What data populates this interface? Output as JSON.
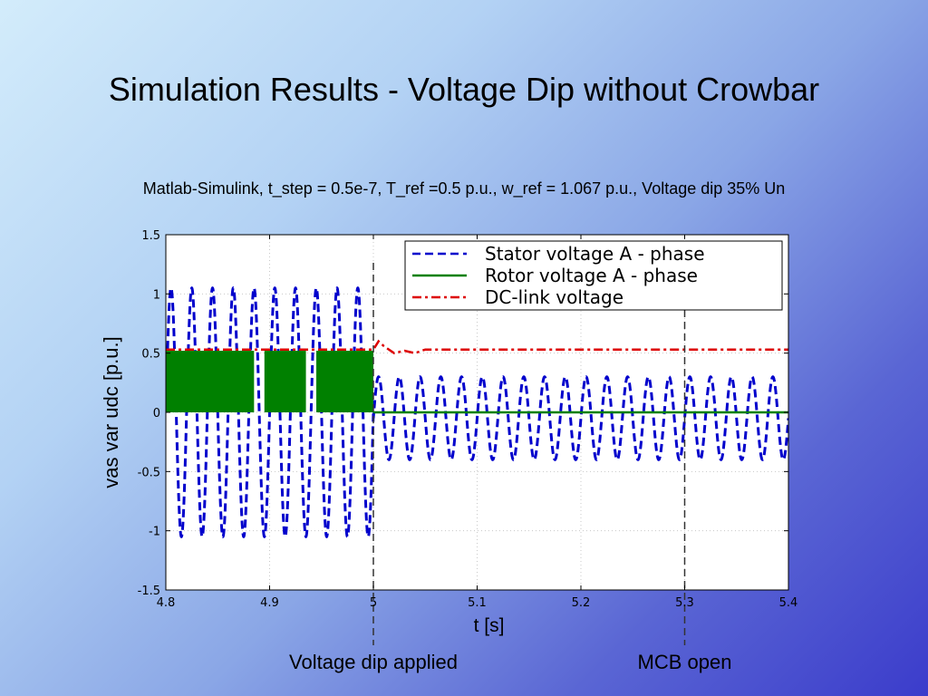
{
  "slide": {
    "title": "Simulation Results - Voltage Dip without Crowbar",
    "subtitle": "Matlab-Simulink, t_step = 0.5e-7, T_ref =0.5 p.u., w_ref = 1.067 p.u., Voltage dip 35% Un"
  },
  "annotations": {
    "dip_label": "Voltage dip applied",
    "mcb_label": "MCB open"
  },
  "chart_data": {
    "type": "line",
    "xlabel": "t [s]",
    "ylabel": "vas  var  udc [p.u.]",
    "xlim": [
      4.8,
      5.4
    ],
    "ylim": [
      -1.5,
      1.5
    ],
    "xticks": [
      4.8,
      4.9,
      5,
      5.1,
      5.2,
      5.3,
      5.4
    ],
    "xtick_labels": [
      "4.8",
      "4.9",
      "5",
      "5.1",
      "5.2",
      "5.3",
      "5.4"
    ],
    "yticks": [
      -1.5,
      -1,
      -0.5,
      0,
      0.5,
      1,
      1.5
    ],
    "ytick_labels": [
      "-1.5",
      "-1",
      "-0.5",
      "0",
      "0.5",
      "1",
      "1.5"
    ],
    "grid": true,
    "legend_position": "top-right",
    "events": [
      {
        "x": 5.0,
        "label_key": "dip_label"
      },
      {
        "x": 5.3,
        "label_key": "mcb_label"
      }
    ],
    "series": [
      {
        "name": "Stator voltage A - phase",
        "color": "#0000cc",
        "style": "dashed",
        "frequency_hz": 50,
        "segments": [
          {
            "x_start": 4.8,
            "x_end": 5.0,
            "amplitude": 1.05
          },
          {
            "x_start": 5.0,
            "x_end": 5.4,
            "amplitude": 0.35,
            "offset": -0.05
          }
        ]
      },
      {
        "name": "Rotor voltage A - phase",
        "color": "#008000",
        "style": "solid",
        "band": {
          "low": 0,
          "high": 0.52,
          "x_start": 4.8,
          "x_end": 5.0,
          "gaps": [
            [
              4.885,
              4.895
            ],
            [
              4.935,
              4.945
            ]
          ]
        },
        "after": {
          "x_start": 5.0,
          "x_end": 5.4,
          "value": 0.0
        }
      },
      {
        "name": "DC-link voltage",
        "color": "#dd0000",
        "style": "dashdot",
        "x": [
          4.8,
          5.0,
          5.005,
          5.01,
          5.02,
          5.03,
          5.04,
          5.05,
          5.06,
          5.4
        ],
        "y": [
          0.53,
          0.53,
          0.6,
          0.56,
          0.5,
          0.52,
          0.5,
          0.53,
          0.53,
          0.53
        ]
      }
    ]
  }
}
